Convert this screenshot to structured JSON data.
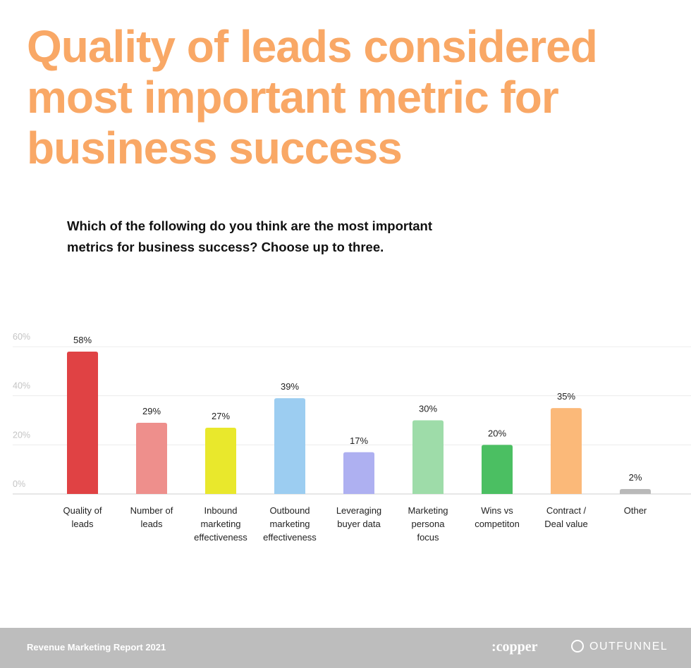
{
  "chart_data": {
    "type": "bar",
    "title": "Quality of leads considered most important metric for business success",
    "subtitle": "Which of the following do you think are the most important metrics for business success? Choose up to three.",
    "categories": [
      "Quality of leads",
      "Number of leads",
      "Inbound marketing effectiveness",
      "Outbound marketing effectiveness",
      "Leveraging buyer data",
      "Marketing persona focus",
      "Wins vs competiton",
      "Contract / Deal value",
      "Other"
    ],
    "values": [
      58,
      29,
      27,
      39,
      17,
      30,
      20,
      35,
      2
    ],
    "value_labels": [
      "58%",
      "29%",
      "27%",
      "39%",
      "17%",
      "30%",
      "20%",
      "35%",
      "2%"
    ],
    "colors": [
      "#e04244",
      "#ee8f8c",
      "#e9e82c",
      "#9ccdf1",
      "#aeb0f1",
      "#9edca9",
      "#4bbf62",
      "#fbb979",
      "#b9b9b9"
    ],
    "ylim": [
      0,
      60
    ],
    "yticks": [
      {
        "value": 0,
        "label": "0%"
      },
      {
        "value": 20,
        "label": "20%"
      },
      {
        "value": 40,
        "label": "40%"
      },
      {
        "value": 60,
        "label": "60%"
      }
    ],
    "grid": true
  },
  "footer": {
    "report": "Revenue Marketing Report 2021",
    "logos": [
      ":copper",
      "OUTFUNNEL"
    ]
  }
}
